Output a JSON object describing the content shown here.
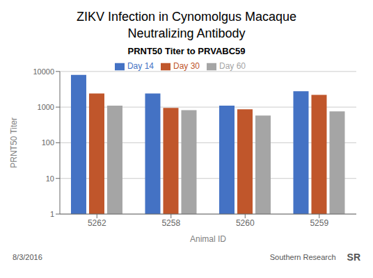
{
  "chart_data": {
    "type": "bar",
    "title": "ZIKV Infection in Cynomolgus Macaque\nNeutralizing Antibody",
    "subtitle": "PRNT50 Titer to PRVABC59",
    "xlabel": "Animal ID",
    "ylabel": "PRNT50 Titer",
    "categories": [
      "5262",
      "5258",
      "5260",
      "5259"
    ],
    "series": [
      {
        "name": "Day 14",
        "color": "#4472C4",
        "values": [
          8000,
          2400,
          1100,
          2800
        ]
      },
      {
        "name": "Day 30",
        "color": "#C0562B",
        "values": [
          2400,
          950,
          870,
          2200
        ]
      },
      {
        "name": "Day 60",
        "color": "#A5A5A5",
        "values": [
          1100,
          820,
          580,
          760
        ]
      }
    ],
    "ylim": [
      1,
      10000
    ],
    "yticks": [
      1,
      10,
      100,
      1000,
      10000
    ],
    "log": "y",
    "grid": true,
    "legend": "top",
    "annotations": [
      "8/3/2016",
      "Southern Research",
      "SR"
    ]
  }
}
